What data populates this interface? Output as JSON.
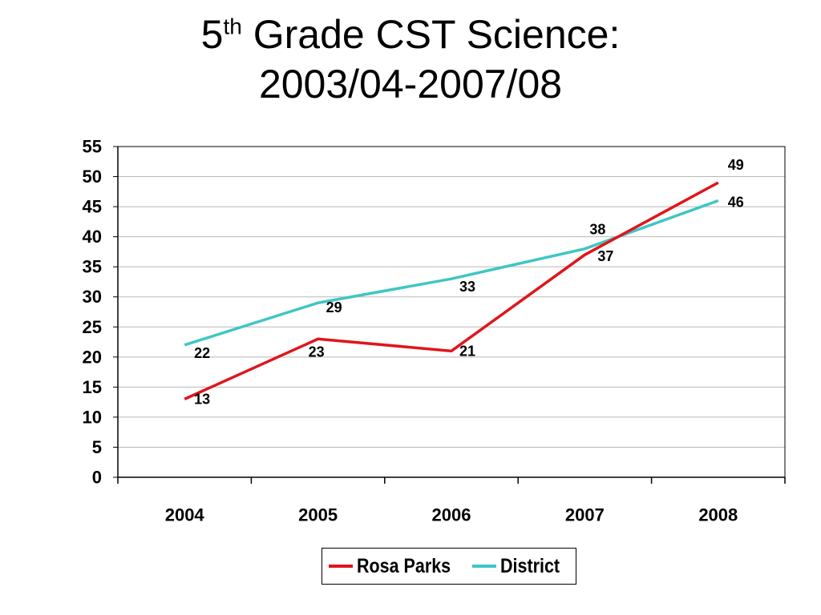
{
  "title": {
    "prefix": "5",
    "superscript": "th",
    "line1_rest": " Grade CST Science:",
    "line2": "2003/04-2007/08"
  },
  "chart_data": {
    "type": "line",
    "categories": [
      "2004",
      "2005",
      "2006",
      "2007",
      "2008"
    ],
    "series": [
      {
        "name": "Rosa Parks",
        "color": "#e0151b",
        "values": [
          13,
          23,
          21,
          37,
          49
        ]
      },
      {
        "name": "District",
        "color": "#3fc6c4",
        "values": [
          22,
          29,
          33,
          38,
          46
        ]
      }
    ],
    "ylim": [
      0,
      55
    ],
    "yticks": [
      0,
      5,
      10,
      15,
      20,
      25,
      30,
      35,
      40,
      45,
      50,
      55
    ],
    "grid": true,
    "legend_position": "bottom"
  }
}
